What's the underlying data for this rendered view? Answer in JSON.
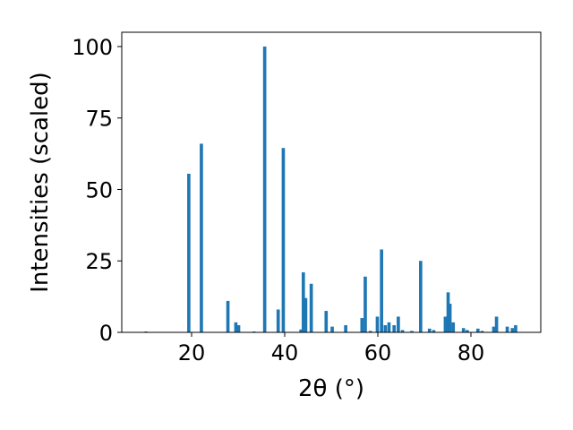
{
  "chart_data": {
    "type": "bar",
    "xlabel": "2θ (°)",
    "ylabel": "Intensities (scaled)",
    "xlim": [
      5,
      95
    ],
    "ylim": [
      0,
      105
    ],
    "x_ticks": [
      20,
      40,
      60,
      80
    ],
    "y_ticks": [
      0,
      25,
      50,
      75,
      100
    ],
    "bar_color": "#1f77b4",
    "grid": false,
    "bar_width": 0.7,
    "x": [
      10.2,
      19.4,
      22.1,
      27.8,
      29.5,
      30.1,
      33.4,
      35.7,
      38.6,
      39.7,
      43.5,
      44.0,
      44.5,
      45.7,
      48.9,
      50.2,
      53.1,
      56.6,
      57.3,
      58.4,
      59.9,
      60.8,
      61.6,
      62.4,
      63.5,
      64.4,
      65.3,
      67.3,
      69.2,
      71.1,
      72.0,
      74.5,
      75.1,
      75.5,
      76.2,
      78.4,
      79.2,
      81.5,
      82.4,
      84.9,
      85.5,
      87.8,
      88.9,
      89.6
    ],
    "values": [
      0.3,
      55.5,
      66.0,
      11.0,
      3.5,
      2.5,
      0.3,
      100.0,
      8.0,
      64.5,
      1.0,
      21.0,
      12.0,
      17.0,
      7.5,
      2.0,
      2.5,
      5.0,
      19.5,
      0.5,
      5.5,
      29.0,
      2.5,
      3.5,
      2.5,
      5.5,
      0.8,
      0.5,
      25.0,
      1.3,
      0.8,
      5.5,
      14.0,
      10.0,
      3.5,
      1.5,
      0.8,
      1.3,
      0.5,
      2.0,
      5.5,
      2.0,
      1.5,
      2.5
    ]
  }
}
